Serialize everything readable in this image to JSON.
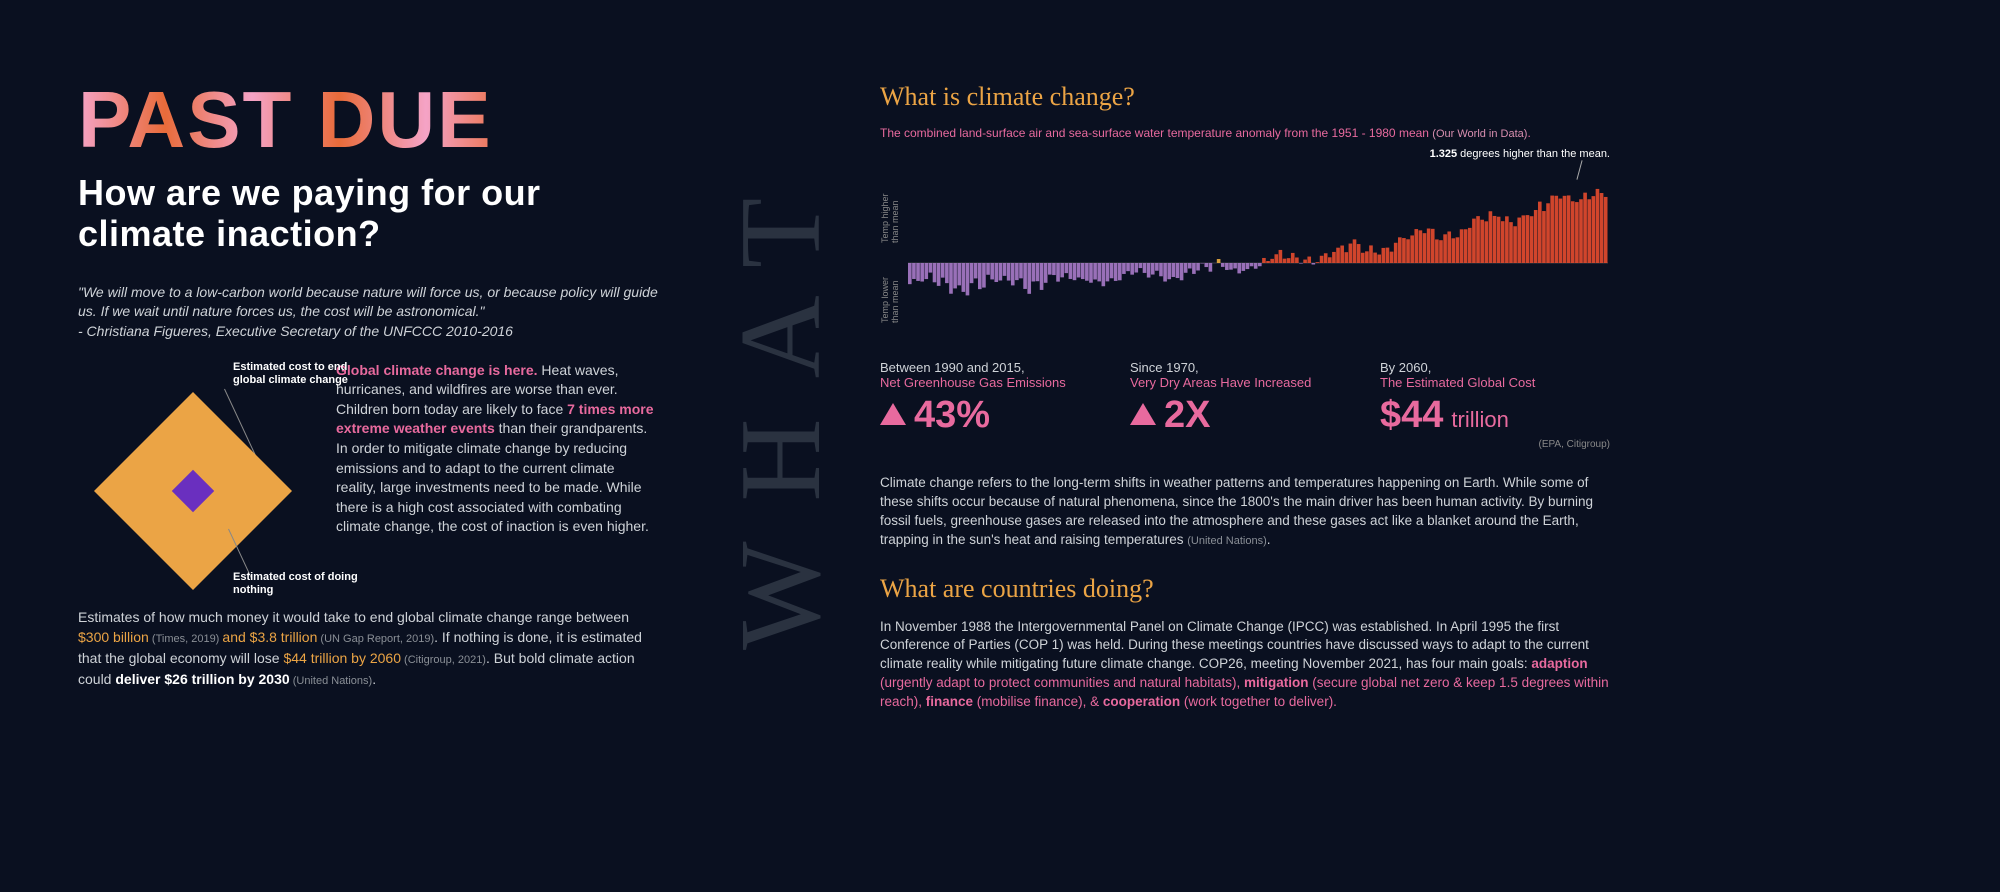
{
  "left": {
    "title": "PAST DUE",
    "subtitle": "How are we paying for our climate inaction?",
    "quote": "\"We will move to a low-carbon world because nature will force us, or because policy will guide us. If we wait until nature forces us, the cost will be astronomical.\"",
    "attribution": "- Christiana Figueres, Executive Secretary of the UNFCCC 2010-2016",
    "diamond": {
      "label_top": "Estimated cost to end global climate change",
      "label_bottom": "Estimated cost of doing nothing",
      "big_color": "#eba445",
      "small_color": "#6a2fbf"
    },
    "body_lead": "Global climate change is here.",
    "body_1": " Heat waves, hurricanes, and wildfires are worse than ever. Children born today are likely to face ",
    "body_hl1": "7 times more extreme weather events",
    "body_2": " than their grandparents. In order to mitigate climate change by reducing emissions and to adapt to the current climate reality, large investments need to be made. While there is a high cost associated with combating climate change, the cost of inaction is even higher.",
    "lower_1": "Estimates of how much money it would take to end global climate change range between ",
    "lower_price1": "$300 billion",
    "lower_cite1": " (Times, 2019) ",
    "lower_mid": "and ",
    "lower_price2": "$3.8 trillion",
    "lower_cite2": " (UN Gap Report, 2019)",
    "lower_2": ". If nothing is done, it is estimated that the global economy will lose ",
    "lower_price3": "$44 trillion by 2060",
    "lower_cite3": " (Citigroup, 2021)",
    "lower_3": ". But bold climate action could ",
    "lower_bold": "deliver $26 trillion by 2030",
    "lower_cite4": " (United Nations)"
  },
  "divider": "WHAT",
  "right": {
    "heading1": "What is climate change?",
    "chart_caption": "The combined land-surface air and sea-surface water temperature anomaly from the 1951 - 1980 mean ",
    "chart_caption_cite": "(Our World in Data)",
    "chart": {
      "axis_upper": "Temp higher than mean",
      "axis_lower": "Temp lower than mean",
      "peak_value": "1.325",
      "peak_text": " degrees higher than the mean.",
      "range_min": -0.6,
      "range_max": 1.325,
      "n_bars": 170,
      "color_low": "#a97bc9",
      "color_mid": "#ecae3f",
      "color_high": "#e64b2e",
      "baseline_color": "#666"
    },
    "stats": [
      {
        "lead": "Between 1990 and 2015,",
        "sub": "Net Greenhouse Gas Emissions",
        "value": "43%",
        "show_triangle": true
      },
      {
        "lead": "Since 1970,",
        "sub": "Very Dry Areas Have Increased",
        "value": "2X",
        "show_triangle": true
      },
      {
        "lead": "By 2060,",
        "sub": "The Estimated Global Cost",
        "value": "$44",
        "unit": "trillion",
        "show_triangle": false,
        "cite": "(EPA, Citigroup)"
      }
    ],
    "para1_a": "Climate change refers to the long-term shifts in weather patterns and temperatures happening on Earth. While some of these shifts occur because of natural phenomena, since the 1800's the main driver has been human activity. By burning fossil fuels, greenhouse gases are released into the  atmosphere  and these gases act like a blanket around the Earth, trapping in the sun's heat and raising temperatures ",
    "para1_cite": "(United Nations)",
    "heading2": "What are countries doing?",
    "para2_a": "In November 1988 the Intergovernmental Panel on Climate Change (IPCC) was established. In April 1995 the first Conference of Parties (COP 1) was held. During these meetings countries have discussed ways to adapt to the current climate reality while mitigating future climate change. COP26, meeting November 2021, has four main goals: ",
    "goal1": "adaption",
    "goal1_d": " (urgently adapt to protect communities and natural habitats), ",
    "goal2": "mitigation",
    "goal2_d": " (secure global net zero & keep 1.5 degrees within reach), ",
    "goal3": "finance",
    "goal3_d": " (mobilise finance), & ",
    "goal4": "cooperation",
    "goal4_d": " (work together to deliver)."
  }
}
